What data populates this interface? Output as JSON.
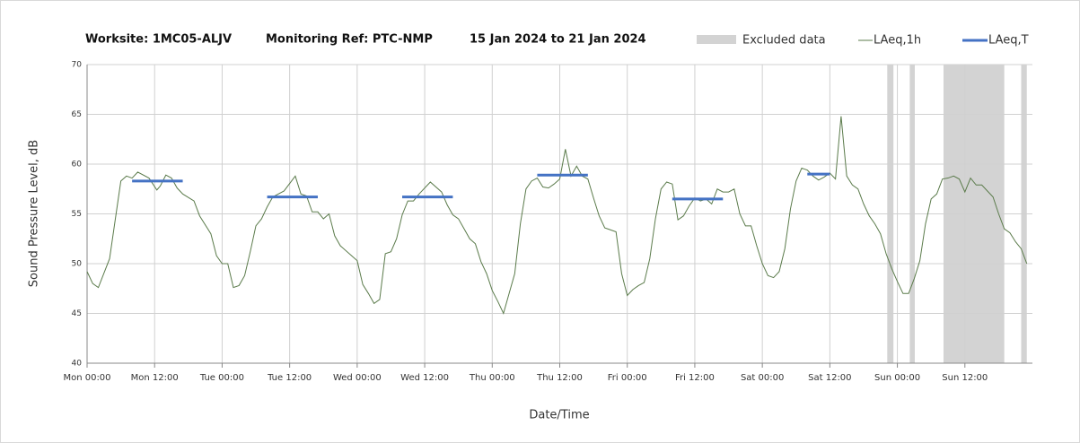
{
  "chart_data": {
    "type": "line",
    "titles": [
      "Worksite: 1MC05-ALJV",
      "Monitoring Ref: PTC-NMP",
      "15 Jan 2024 to 21 Jan 2024"
    ],
    "ylabel": "Sound Pressure Level, dB",
    "xlabel": "Date/Time",
    "xlim": [
      0,
      168
    ],
    "ylim": [
      40,
      70
    ],
    "yticks": [
      40,
      45,
      50,
      55,
      60,
      65,
      70
    ],
    "xticks": [
      {
        "value": 0,
        "label": "Mon 00:00"
      },
      {
        "value": 12,
        "label": "Mon 12:00"
      },
      {
        "value": 24,
        "label": "Tue 00:00"
      },
      {
        "value": 36,
        "label": "Tue 12:00"
      },
      {
        "value": 48,
        "label": "Wed 00:00"
      },
      {
        "value": 60,
        "label": "Wed 12:00"
      },
      {
        "value": 72,
        "label": "Thu 00:00"
      },
      {
        "value": 84,
        "label": "Thu 12:00"
      },
      {
        "value": 96,
        "label": "Fri 00:00"
      },
      {
        "value": 108,
        "label": "Fri 12:00"
      },
      {
        "value": 120,
        "label": "Sat 00:00"
      },
      {
        "value": 132,
        "label": "Sat 12:00"
      },
      {
        "value": 144,
        "label": "Sun 00:00"
      },
      {
        "value": 156,
        "label": "Sun 12:00"
      }
    ],
    "grid": true,
    "excluded": {
      "name": "Excluded data",
      "color": "#d3d3d3",
      "ranges": [
        [
          142.2,
          143.3
        ],
        [
          146.2,
          147.1
        ],
        [
          152.2,
          163
        ],
        [
          166,
          167
        ]
      ]
    },
    "series": [
      {
        "name": "LAeq,1h",
        "color": "#5b7b4b",
        "x": [
          0,
          1,
          2,
          4,
          6,
          7,
          8,
          9,
          11,
          12.4,
          13,
          14,
          15,
          16,
          17,
          19,
          20,
          22,
          23,
          24,
          25,
          26,
          27,
          28,
          29,
          30,
          31,
          32,
          33,
          35,
          37,
          38,
          39,
          40,
          41,
          42,
          43,
          44,
          45,
          47,
          48,
          49,
          50,
          51,
          52,
          53,
          54,
          55,
          56,
          57,
          58,
          59,
          61,
          63,
          64,
          65,
          66,
          67,
          68,
          69,
          70,
          71,
          72,
          73,
          74,
          75,
          76,
          77,
          78,
          79,
          80,
          81,
          82,
          83,
          84,
          85,
          86,
          87,
          88,
          89,
          90,
          91,
          92,
          94,
          95,
          96,
          97,
          98,
          99,
          100,
          101,
          102,
          103,
          104,
          105,
          106,
          107,
          108,
          109,
          110,
          111,
          112,
          113,
          114,
          115,
          116,
          117,
          118,
          119,
          120,
          121,
          122,
          123,
          124,
          125,
          126,
          127,
          128,
          129,
          130,
          131,
          132,
          133,
          134,
          135,
          136,
          137,
          138,
          139,
          140,
          141,
          142,
          143,
          144,
          145,
          146,
          147,
          148,
          149,
          150,
          151,
          152,
          153,
          154,
          155,
          156,
          157,
          158,
          159,
          160,
          161,
          162,
          163,
          164,
          165,
          166,
          167
        ],
        "values": [
          49.2,
          48,
          47.6,
          50.5,
          58.3,
          58.8,
          58.6,
          59.2,
          58.6,
          57.4,
          57.8,
          58.9,
          58.6,
          57.6,
          57,
          56.3,
          54.8,
          53,
          50.8,
          50,
          50,
          47.6,
          47.8,
          48.8,
          51.2,
          53.8,
          54.5,
          55.7,
          56.7,
          57.3,
          58.8,
          57,
          56.8,
          55.2,
          55.2,
          54.5,
          55,
          52.8,
          51.8,
          50.8,
          50.3,
          47.9,
          47,
          46,
          46.4,
          51,
          51.2,
          52.5,
          54.9,
          56.3,
          56.3,
          57,
          58.2,
          57.2,
          55.9,
          54.9,
          54.5,
          53.5,
          52.5,
          52,
          50.2,
          49,
          47.3,
          46.2,
          45,
          47,
          49,
          54,
          57.5,
          58.3,
          58.6,
          57.7,
          57.6,
          58,
          58.5,
          61.5,
          58.8,
          59.8,
          58.8,
          58.5,
          56.6,
          54.8,
          53.6,
          53.2,
          49,
          46.8,
          47.4,
          47.8,
          48.1,
          50.5,
          54.5,
          57.5,
          58.2,
          58,
          54.4,
          54.8,
          55.8,
          56.6,
          56.3,
          56.5,
          56,
          57.5,
          57.2,
          57.2,
          57.5,
          55,
          53.8,
          53.8,
          51.8,
          50,
          48.8,
          48.6,
          49.2,
          51.5,
          55.5,
          58.3,
          59.6,
          59.4,
          58.8,
          58.4,
          58.7,
          59.1,
          58.5,
          64.8,
          58.8,
          57.9,
          57.5,
          56,
          54.8,
          54,
          53,
          51,
          49.5,
          48.2,
          47,
          47,
          48.5,
          50.3,
          54,
          56.5,
          57,
          58.5,
          58.6,
          58.8,
          58.5,
          57.2,
          58.6,
          57.9,
          57.9,
          57.3,
          56.7,
          55,
          53.5,
          53.1,
          52.2,
          51.5,
          50
        ]
      }
    ],
    "segments": {
      "name": "LAeq,T",
      "color": "#4472c4",
      "items": [
        {
          "x": [
            8,
            17
          ],
          "value": 58.3
        },
        {
          "x": [
            32,
            41
          ],
          "value": 56.7
        },
        {
          "x": [
            56,
            65
          ],
          "value": 56.7
        },
        {
          "x": [
            80,
            89
          ],
          "value": 58.9
        },
        {
          "x": [
            104,
            113
          ],
          "value": 56.5
        },
        {
          "x": [
            128,
            132
          ],
          "value": 59
        }
      ]
    }
  }
}
